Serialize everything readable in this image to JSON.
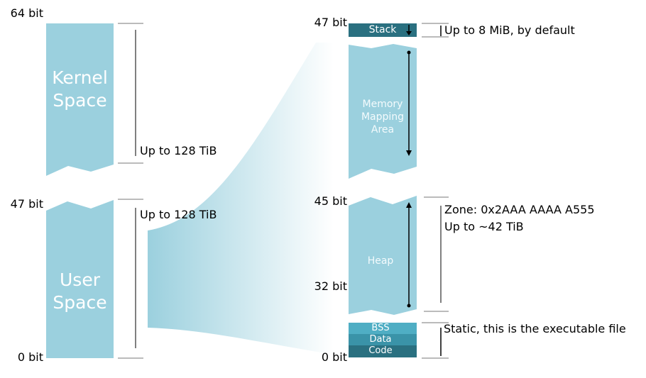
{
  "left": {
    "bits": {
      "top": "64 bit",
      "mid": "47 bit",
      "bottom": "0 bit"
    },
    "kernel_space": {
      "line1": "Kernel",
      "line2": "Space"
    },
    "user_space": {
      "line1": "User",
      "line2": "Space"
    },
    "kernel_span": "Up to 128 TiB",
    "user_span": "Up to 128 TiB"
  },
  "right": {
    "bits": {
      "b47": "47 bit",
      "b45": "45 bit",
      "b32": "32 bit",
      "b0": "0 bit"
    },
    "stack": {
      "label": "Stack",
      "note": "Up to 8 MiB, by default"
    },
    "mmap": {
      "line1": "Memory",
      "line2": "Mapping",
      "line3": "Area"
    },
    "heap": {
      "label": "Heap",
      "note_line1": "Zone: 0x2AAA AAAA A555",
      "note_line2": "Up to ~42 TiB"
    },
    "static": {
      "bss": "BSS",
      "data": "Data",
      "code": "Code",
      "note": "Static, this is the executable file"
    }
  },
  "colors": {
    "block_light": "#9bd0de",
    "block_dark": "#2a7080",
    "segment_mid": "#3a93a8",
    "segment_light": "#4faec4",
    "line": "#000000",
    "tick": "#777777"
  }
}
